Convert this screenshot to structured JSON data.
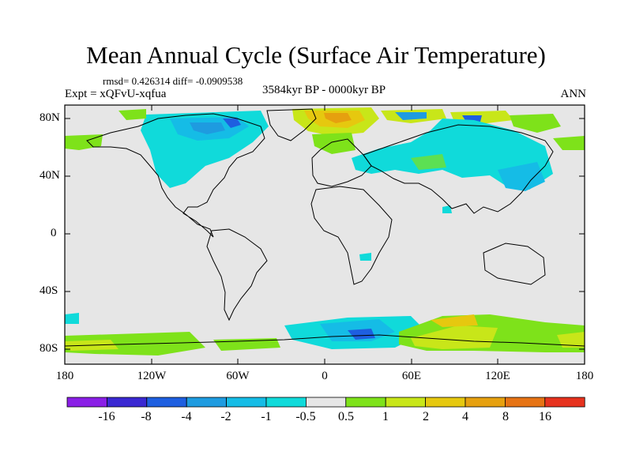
{
  "title": "Mean Annual Cycle (Surface Air Temperature)",
  "stats": "rmsd= 0.426314 diff= -0.0909538",
  "experiment": "Expt = xQFvU-xqfua",
  "period": "3584kyr BP - 0000kyr BP",
  "season": "ANN",
  "map": {
    "lat_labels": [
      "80N",
      "40N",
      "0",
      "40S",
      "80S"
    ],
    "lon_labels": [
      "180",
      "120W",
      "60W",
      "0",
      "60E",
      "120E",
      "180"
    ]
  },
  "colorbar": {
    "labels": [
      "-16",
      "-8",
      "-4",
      "-2",
      "-1",
      "-0.5",
      "0.5",
      "1",
      "2",
      "4",
      "8",
      "16"
    ],
    "colors": [
      "#8a1fe6",
      "#3a28d2",
      "#1e5fe0",
      "#1e9be0",
      "#15bce6",
      "#10dada",
      "#e6e6e6",
      "#7ee21a",
      "#c8e619",
      "#e6c80f",
      "#e6a00f",
      "#e67314",
      "#e6321e"
    ]
  },
  "colors": {
    "ocean_background": "#e6e6e6",
    "coastline": "#000000"
  }
}
